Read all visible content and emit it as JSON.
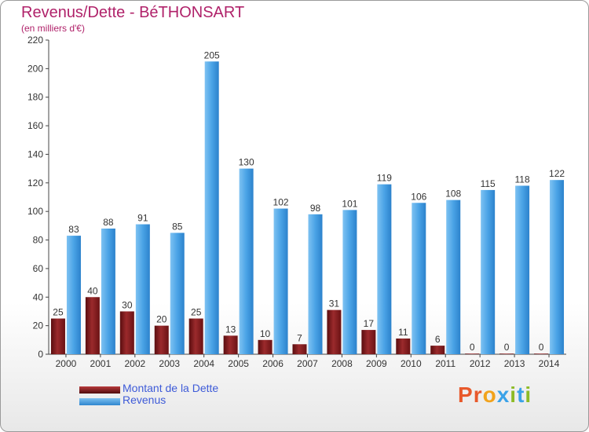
{
  "title": "Revenus/Dette - BéTHONSART",
  "subtitle": "(en milliers d'€)",
  "legend": {
    "debt_label": "Montant de la Dette",
    "revenue_label": "Revenus"
  },
  "logo": {
    "letters": [
      "P",
      "r",
      "o",
      "x",
      "i",
      "t",
      "i"
    ]
  },
  "colors": {
    "title": "#b0226a",
    "legend_text": "#3e5bd8",
    "debt": "#7a1416",
    "revenue": "#3a95dd",
    "logo": [
      "#e8592b",
      "#e8592b",
      "#f2a31c",
      "#3aa2e8",
      "#8dbb26",
      "#3aa2e8",
      "#8dbb26"
    ]
  },
  "chart_data": {
    "type": "bar",
    "categories": [
      "2000",
      "2001",
      "2002",
      "2003",
      "2004",
      "2005",
      "2006",
      "2007",
      "2008",
      "2009",
      "2010",
      "2011",
      "2012",
      "2013",
      "2014"
    ],
    "series": [
      {
        "name": "Montant de la Dette",
        "values": [
          25,
          40,
          30,
          20,
          25,
          13,
          10,
          7,
          31,
          17,
          11,
          6,
          0,
          0,
          0
        ]
      },
      {
        "name": "Revenus",
        "values": [
          83,
          88,
          91,
          85,
          205,
          130,
          102,
          98,
          101,
          119,
          106,
          108,
          115,
          118,
          122
        ]
      }
    ],
    "ylim": [
      0,
      220
    ],
    "yticks": [
      0,
      20,
      40,
      60,
      80,
      100,
      120,
      140,
      160,
      180,
      200,
      220
    ],
    "grid": false,
    "legend_position": "bottom-left"
  }
}
